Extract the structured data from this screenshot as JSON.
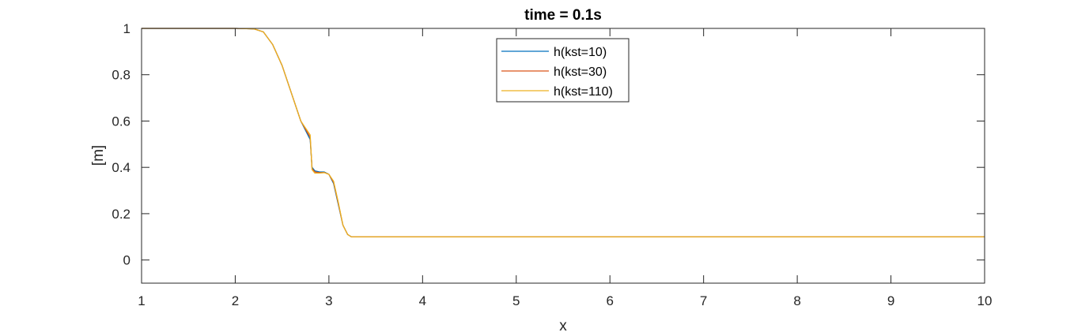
{
  "chart_data": {
    "type": "line",
    "title": "time = 0.1s",
    "xlabel": "x",
    "ylabel": "[m]",
    "xlim": [
      1,
      10
    ],
    "ylim": [
      -0.1,
      1
    ],
    "xticks": [
      1,
      2,
      3,
      4,
      5,
      6,
      7,
      8,
      9,
      10
    ],
    "yticks": [
      0,
      0.2,
      0.4,
      0.6,
      0.8,
      1
    ],
    "xtick_labels": [
      "1",
      "2",
      "3",
      "4",
      "5",
      "6",
      "7",
      "8",
      "9",
      "10"
    ],
    "ytick_labels": [
      "0",
      "0.2",
      "0.4",
      "0.6",
      "0.8",
      "1"
    ],
    "grid": false,
    "box": true,
    "legend_position": "top-center",
    "series": [
      {
        "name": "h(kst=10)",
        "color": "#0072BD",
        "x": [
          1.0,
          2.0,
          2.2,
          2.3,
          2.4,
          2.5,
          2.6,
          2.7,
          2.8,
          2.82,
          2.85,
          2.9,
          2.95,
          3.0,
          3.05,
          3.1,
          3.15,
          3.2,
          3.24,
          3.3,
          4.0,
          5.0,
          6.0,
          7.0,
          8.0,
          9.0,
          10.0
        ],
        "y": [
          1.0,
          1.0,
          0.998,
          0.985,
          0.93,
          0.84,
          0.72,
          0.6,
          0.52,
          0.4,
          0.385,
          0.38,
          0.38,
          0.37,
          0.33,
          0.24,
          0.15,
          0.11,
          0.1,
          0.1,
          0.1,
          0.1,
          0.1,
          0.1,
          0.1,
          0.1,
          0.1
        ]
      },
      {
        "name": "h(kst=30)",
        "color": "#D95319",
        "x": [
          1.0,
          2.0,
          2.2,
          2.3,
          2.4,
          2.5,
          2.6,
          2.7,
          2.8,
          2.82,
          2.85,
          2.9,
          2.95,
          3.0,
          3.05,
          3.1,
          3.15,
          3.2,
          3.24,
          3.3,
          4.0,
          5.0,
          6.0,
          7.0,
          8.0,
          9.0,
          10.0
        ],
        "y": [
          1.0,
          1.0,
          0.998,
          0.985,
          0.93,
          0.84,
          0.72,
          0.6,
          0.53,
          0.395,
          0.38,
          0.377,
          0.378,
          0.37,
          0.335,
          0.245,
          0.15,
          0.11,
          0.1,
          0.1,
          0.1,
          0.1,
          0.1,
          0.1,
          0.1,
          0.1,
          0.1
        ]
      },
      {
        "name": "h(kst=110)",
        "color": "#EDB120",
        "x": [
          1.0,
          2.0,
          2.2,
          2.3,
          2.4,
          2.5,
          2.6,
          2.7,
          2.8,
          2.82,
          2.85,
          2.9,
          2.95,
          3.0,
          3.05,
          3.1,
          3.15,
          3.2,
          3.24,
          3.3,
          4.0,
          5.0,
          6.0,
          7.0,
          8.0,
          9.0,
          10.0
        ],
        "y": [
          1.0,
          1.0,
          0.998,
          0.985,
          0.93,
          0.84,
          0.72,
          0.6,
          0.54,
          0.39,
          0.375,
          0.375,
          0.377,
          0.37,
          0.34,
          0.25,
          0.15,
          0.11,
          0.1,
          0.1,
          0.1,
          0.1,
          0.1,
          0.1,
          0.1,
          0.1,
          0.1
        ]
      }
    ]
  }
}
